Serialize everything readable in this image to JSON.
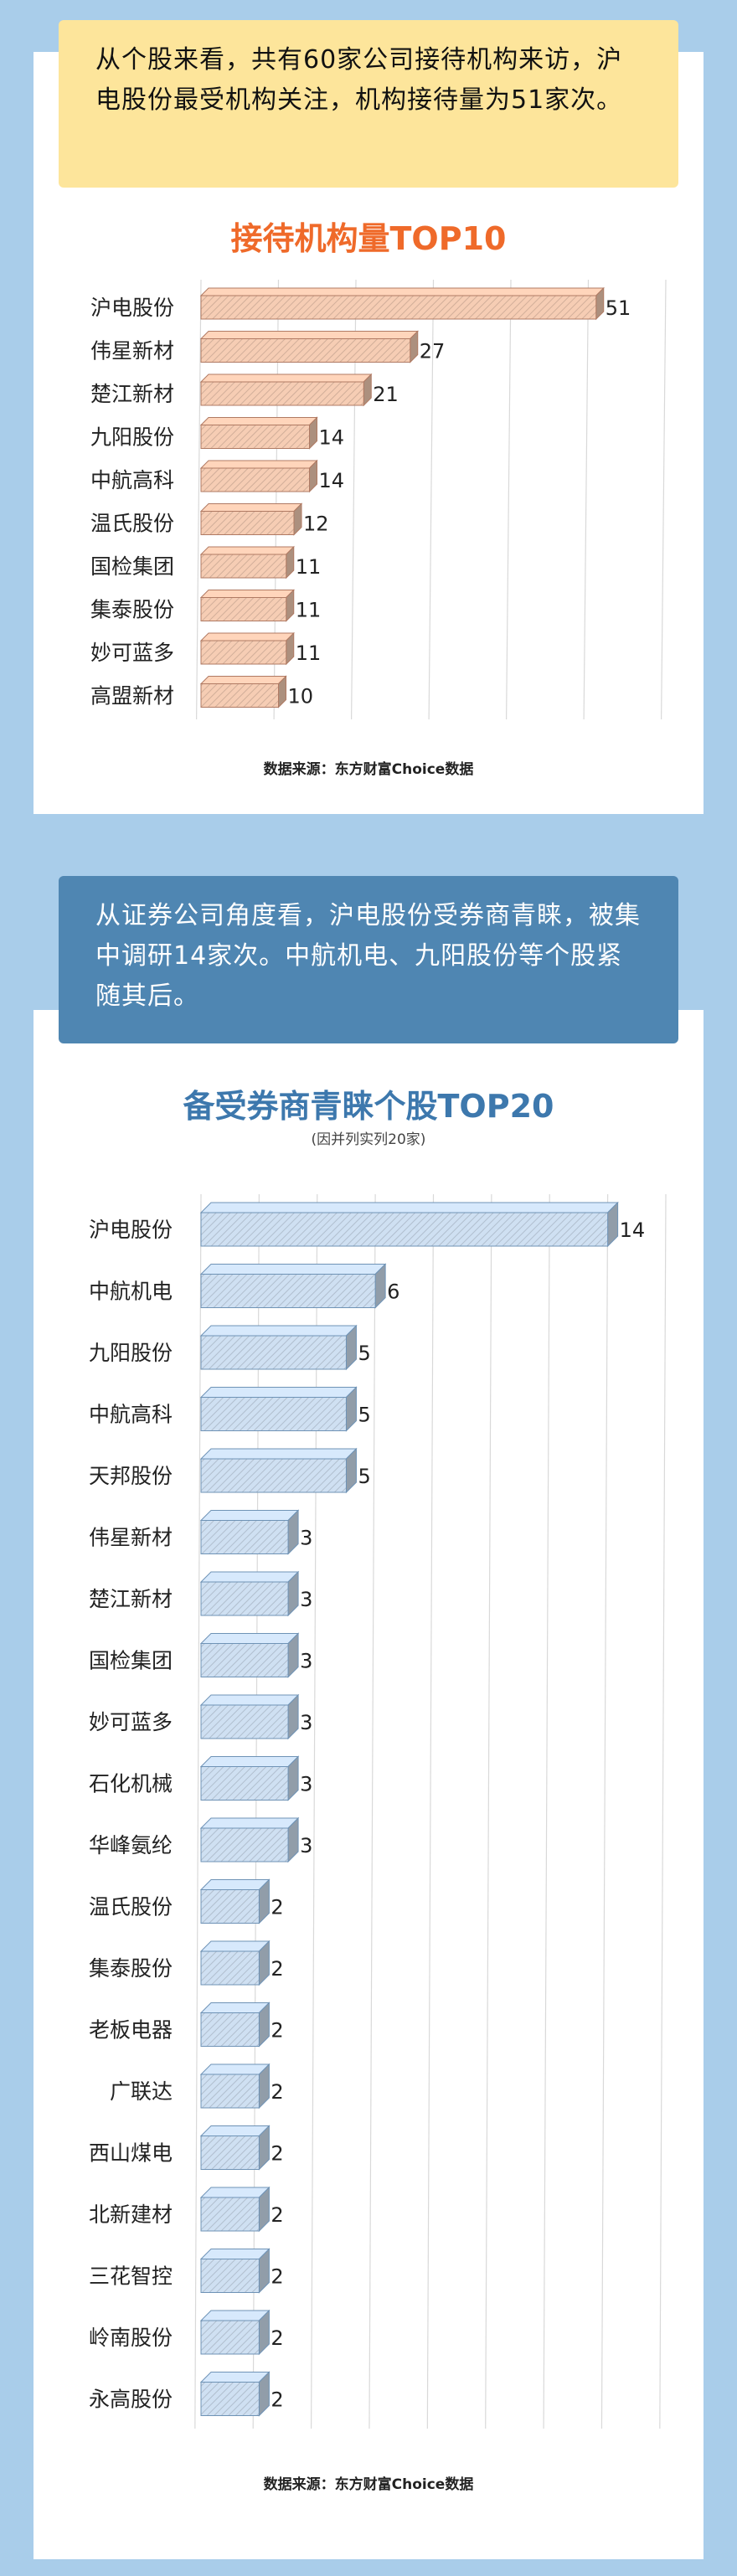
{
  "section1": {
    "callout": "从个股来看，共有60家公司接待机构来访，沪电股份最受机构关注，机构接待量为51家次。",
    "source": "数据来源：东方财富Choice数据",
    "chart_data": {
      "type": "bar",
      "orientation": "horizontal",
      "title": "接待机构量TOP10",
      "categories": [
        "沪电股份",
        "伟星新材",
        "楚江新材",
        "九阳股份",
        "中航高科",
        "温氏股份",
        "国检集团",
        "集泰股份",
        "妙可蓝多",
        "高盟新材"
      ],
      "values": [
        51,
        27,
        21,
        14,
        14,
        12,
        11,
        11,
        11,
        10
      ],
      "xlim": [
        0,
        60
      ],
      "grid": true,
      "bar_color": "#f6cdb4",
      "bar_edge": "#b07a63"
    }
  },
  "section2": {
    "callout": "从证券公司角度看，沪电股份受券商青睐，被集中调研14家次。中航机电、九阳股份等个股紧随其后。",
    "source": "数据来源：东方财富Choice数据",
    "chart_data": {
      "type": "bar",
      "orientation": "horizontal",
      "title": "备受券商青睐个股TOP20",
      "subtitle": "(因并列实列20家)",
      "categories": [
        "沪电股份",
        "中航机电",
        "九阳股份",
        "中航高科",
        "天邦股份",
        "伟星新材",
        "楚江新材",
        "国检集团",
        "妙可蓝多",
        "石化机械",
        "华峰氨纶",
        "温氏股份",
        "集泰股份",
        "老板电器",
        "广联达",
        "西山煤电",
        "北新建材",
        "三花智控",
        "岭南股份",
        "永高股份"
      ],
      "values": [
        14,
        6,
        5,
        5,
        5,
        3,
        3,
        3,
        3,
        3,
        3,
        2,
        2,
        2,
        2,
        2,
        2,
        2,
        2,
        2
      ],
      "xlim": [
        0,
        16
      ],
      "grid": true,
      "bar_color": "#cfe0f2",
      "bar_edge": "#6f93b6"
    }
  }
}
